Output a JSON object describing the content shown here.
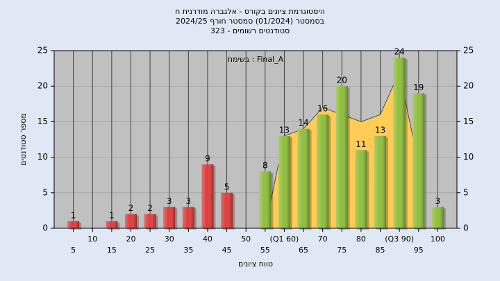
{
  "chart_data": {
    "type": "bar",
    "title": [
      "היסטוגרמת ציונים בקורס - אלגברה מודרנית ח",
      "בסמסטר  (01/2024)  סמסטר חורף 2024/25",
      "סטודנטים רשומים - 323"
    ],
    "annotation": "בשימת : Final_A",
    "x_label": "טווח ציונים",
    "y_label": "מספר סטודנטים",
    "x": [
      5,
      10,
      15,
      20,
      25,
      30,
      35,
      40,
      45,
      50,
      55,
      60,
      65,
      70,
      75,
      80,
      85,
      90,
      95,
      100
    ],
    "values": [
      1,
      0,
      1,
      2,
      2,
      3,
      3,
      9,
      5,
      0,
      8,
      13,
      14,
      16,
      20,
      11,
      13,
      24,
      19,
      3
    ],
    "value_labels": [
      "1",
      null,
      "1",
      "2",
      "2",
      "3",
      "3",
      "9",
      "5",
      null,
      "8",
      "13",
      "14",
      "16",
      "20",
      "11",
      "13",
      "24",
      "19",
      "3"
    ],
    "colors": [
      "#e03a3a",
      "#e03a3a",
      "#e03a3a",
      "#e03a3a",
      "#e03a3a",
      "#e03a3a",
      "#e03a3a",
      "#e03a3a",
      "#e03a3a",
      "#e03a3a",
      "#8fbf3a",
      "#8fbf3a",
      "#8fbf3a",
      "#8fbf3a",
      "#8fbf3a",
      "#8fbf3a",
      "#8fbf3a",
      "#8fbf3a",
      "#8fbf3a",
      "#8fbf3a"
    ],
    "area": {
      "color": "#ffcc55",
      "values": [
        null,
        null,
        null,
        null,
        null,
        null,
        null,
        null,
        null,
        null,
        0,
        13,
        14,
        17,
        16,
        15,
        16,
        22,
        9,
        null
      ]
    },
    "xlim": [
      0,
      105
    ],
    "xticks": [
      5,
      10,
      15,
      20,
      25,
      30,
      35,
      40,
      45,
      50,
      55,
      {
        "value": 60,
        "label": "(Q1 60)"
      },
      65,
      70,
      75,
      80,
      85,
      {
        "value": 90,
        "label": "(Q3 90)"
      },
      95,
      100
    ],
    "ylim": [
      0,
      25
    ],
    "yticks": [
      0,
      5,
      10,
      15,
      20,
      25
    ],
    "y2lim": [
      0,
      25
    ],
    "y2ticks": [
      0,
      5,
      10,
      15,
      20,
      25
    ],
    "grid": true
  }
}
